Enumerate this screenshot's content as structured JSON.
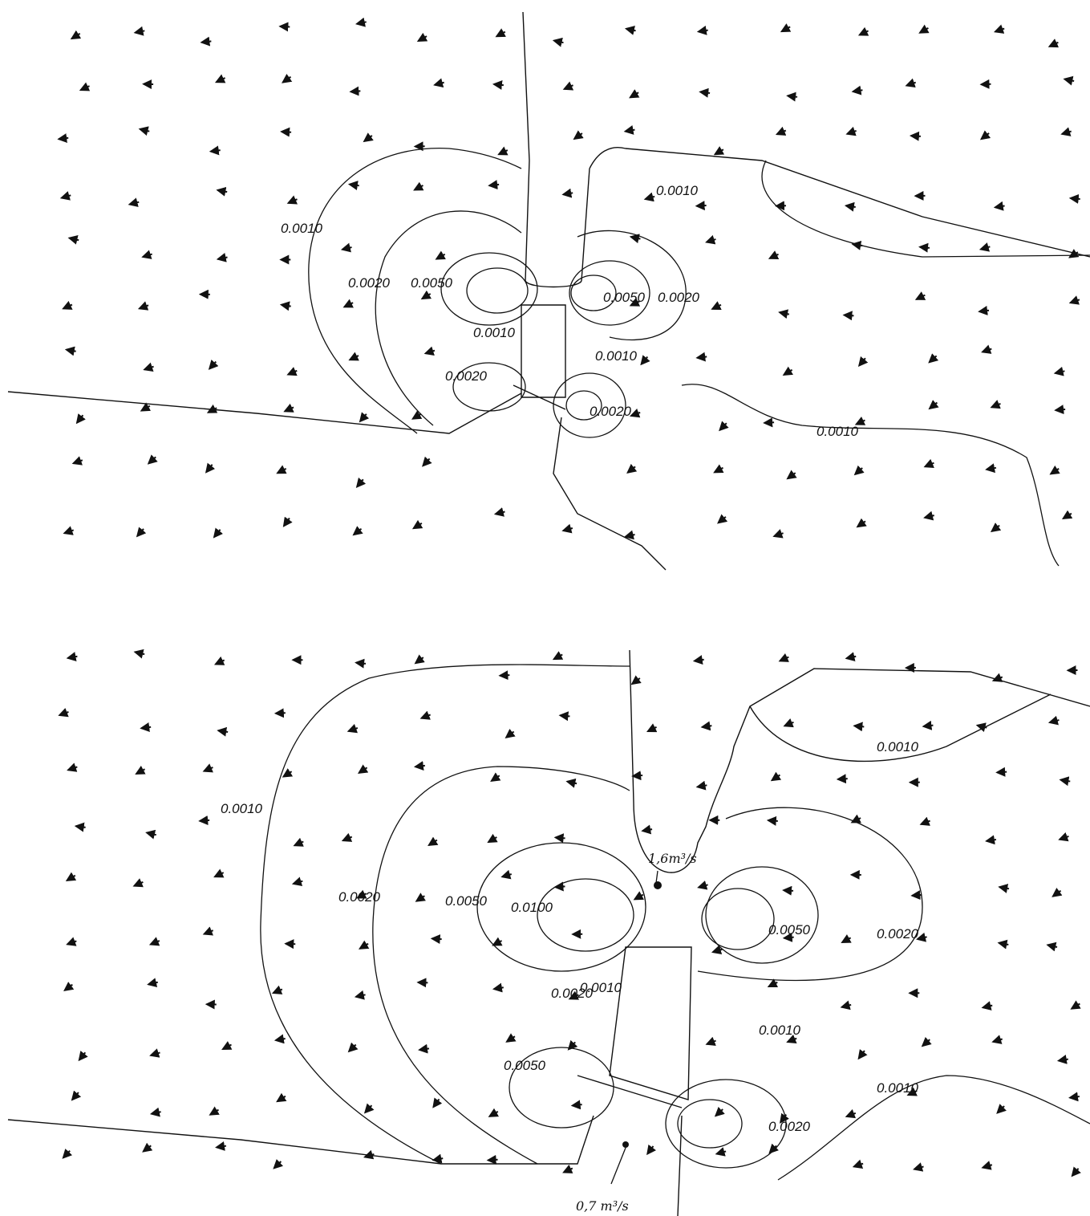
{
  "panels": [
    {
      "contour_labels": [
        "0.0010",
        "0.0010",
        "0.0020",
        "0.0050",
        "0.0020",
        "0.0050",
        "0.0010",
        "0.0010",
        "0.0020",
        "0.0020",
        "0.0010"
      ]
    },
    {
      "contour_labels": [
        "0.0010",
        "0.0010",
        "0.0020",
        "0.0050",
        "0.0100",
        "0.0050",
        "0.0020",
        "0.0010",
        "0.0020",
        "0.0010",
        "0.0050",
        "0.0010",
        "0.0020"
      ],
      "annotations": [
        "1,6m³/s",
        "0,7 m³/s"
      ]
    }
  ]
}
